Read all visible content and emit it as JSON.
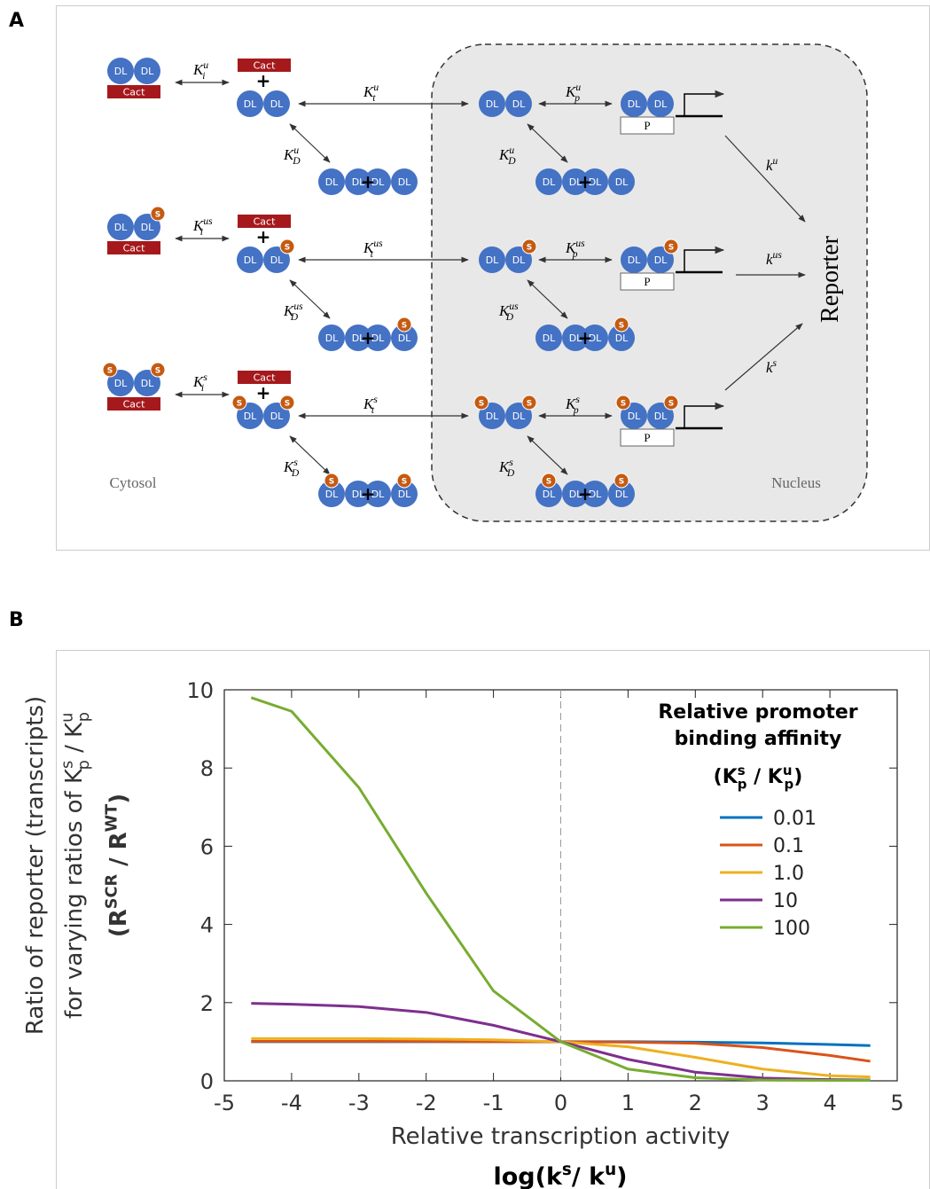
{
  "panel_labels": [
    "A",
    "B"
  ],
  "panel_a": {
    "cytosol": "Cytosol",
    "nucleus": "Nucleus",
    "reporter": "Reporter",
    "dl": "DL",
    "cact": "Cact",
    "s": "S",
    "p": "P",
    "plus": "+",
    "rows": [
      {
        "Ki": [
          "K",
          {
            "sup": "u",
            "sub": "i"
          }
        ],
        "Kt": [
          "K",
          {
            "sup": "u",
            "sub": "t"
          }
        ],
        "KDc": [
          "K",
          {
            "sup": "u",
            "sub": "D"
          }
        ],
        "KDn": [
          "K",
          {
            "sup": "u",
            "sub": "D"
          }
        ],
        "Kp": [
          "K",
          {
            "sup": "u",
            "sub": "p"
          }
        ],
        "k": [
          "k",
          {
            "sup": "u"
          }
        ]
      },
      {
        "Ki": [
          "K",
          {
            "sup": "us",
            "sub": "i"
          }
        ],
        "Kt": [
          "K",
          {
            "sup": "us",
            "sub": "t"
          }
        ],
        "KDc": [
          "K",
          {
            "sup": "us",
            "sub": "D"
          }
        ],
        "KDn": [
          "K",
          {
            "sup": "us",
            "sub": "D"
          }
        ],
        "Kp": [
          "K",
          {
            "sup": "us",
            "sub": "p"
          }
        ],
        "k": [
          "k",
          {
            "sup": "us"
          }
        ]
      },
      {
        "Ki": [
          "K",
          {
            "sup": "s",
            "sub": "i"
          }
        ],
        "Kt": [
          "K",
          {
            "sup": "s",
            "sub": "t"
          }
        ],
        "KDc": [
          "K",
          {
            "sup": "s",
            "sub": "D"
          }
        ],
        "KDn": [
          "K",
          {
            "sup": "s",
            "sub": "D"
          }
        ],
        "Kp": [
          "K",
          {
            "sup": "s",
            "sub": "p"
          }
        ],
        "k": [
          "k",
          {
            "sup": "s"
          }
        ]
      }
    ]
  },
  "chart_data": {
    "type": "line",
    "y_label": [
      [
        "Ratio of reporter (transcripts)"
      ],
      [
        "for varying ratios of K",
        {
          "sup": "s",
          "sub": "p"
        },
        " / K",
        {
          "sup": "u",
          "sub": "p"
        }
      ],
      [
        "(R",
        {
          "sup": "SCR"
        },
        " / R",
        {
          "sup": "WT"
        },
        ")"
      ]
    ],
    "x_label": [
      [
        "Relative transcription activity"
      ],
      [
        "log(k",
        {
          "sup": "s"
        },
        "/ k",
        {
          "sup": "u"
        },
        ")"
      ]
    ],
    "legend_title": [
      [
        "Relative promoter"
      ],
      [
        "binding affinity"
      ],
      [
        "(K",
        {
          "sup": "s",
          "sub": "p"
        },
        " / K",
        {
          "sup": "u",
          "sub": "p"
        },
        ")"
      ]
    ],
    "legend": "upper right",
    "reference_line_x": 0,
    "x": [
      -4.6,
      -4,
      -3,
      -2,
      -1,
      0,
      1,
      2,
      3,
      4,
      4.6
    ],
    "series": [
      {
        "name": "0.01",
        "color": "#0072bd",
        "values": [
          1,
          1,
          1,
          1,
          1,
          1,
          1,
          0.99,
          0.97,
          0.93,
          0.9
        ]
      },
      {
        "name": "0.1",
        "color": "#d95319",
        "values": [
          1.01,
          1.01,
          1.01,
          1.01,
          1,
          1,
          0.99,
          0.96,
          0.85,
          0.65,
          0.5
        ]
      },
      {
        "name": "1.0",
        "color": "#edb120",
        "values": [
          1.08,
          1.08,
          1.08,
          1.07,
          1.05,
          1,
          0.87,
          0.6,
          0.3,
          0.13,
          0.1
        ]
      },
      {
        "name": "10",
        "color": "#7e2f8e",
        "values": [
          1.98,
          1.96,
          1.9,
          1.75,
          1.42,
          1,
          0.55,
          0.22,
          0.07,
          0.03,
          0.02
        ]
      },
      {
        "name": "100",
        "color": "#77ac30",
        "values": [
          9.8,
          9.45,
          7.5,
          4.8,
          2.3,
          1,
          0.3,
          0.08,
          0.02,
          0.01,
          0.01
        ]
      }
    ],
    "xlim": [
      -5,
      5
    ],
    "ylim": [
      0,
      10
    ],
    "xticks": [
      -5,
      -4,
      -3,
      -2,
      -1,
      0,
      1,
      2,
      3,
      4,
      5
    ],
    "yticks": [
      0,
      2,
      4,
      6,
      8,
      10
    ]
  }
}
